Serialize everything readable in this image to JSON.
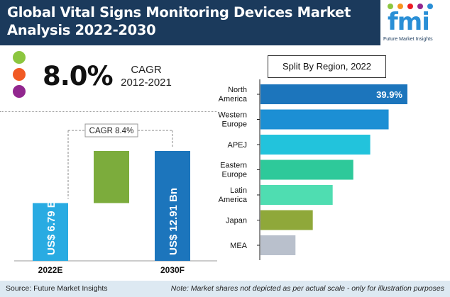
{
  "header": {
    "title_line1": "Global Vital Signs Monitoring Devices Market",
    "title_line2": "Analysis 2022-2030",
    "logo_text": "fmi",
    "logo_tagline": "Future Market Insights"
  },
  "cagr": {
    "value": "8.0%",
    "label_line1": "CAGR",
    "label_line2": "2012-2021",
    "dot_colors": [
      "#8cc63f",
      "#f15a24",
      "#92278f"
    ]
  },
  "footer": {
    "source": "Source: Future Market Insights",
    "note": "Note: Market shares not depicted as per actual scale - only for illustration purposes"
  },
  "chart_data": [
    {
      "type": "bar",
      "categories": [
        "2022E",
        "2030F"
      ],
      "values": [
        6.79,
        12.91
      ],
      "value_labels": [
        "US$ 6.79 Bn",
        "US$ 12.91 Bn"
      ],
      "growth": 6.12,
      "annotation": "CAGR 8.4%",
      "colors": {
        "2022E": "#29abe2",
        "2030F": "#1c75bc",
        "growth": "#7cac3c"
      }
    },
    {
      "type": "bar",
      "orientation": "horizontal",
      "title": "Split By Region, 2022",
      "categories": [
        [
          "North",
          "America"
        ],
        [
          "Western",
          "Europe"
        ],
        [
          "APEJ"
        ],
        [
          "Eastern",
          "Europe"
        ],
        [
          "Latin",
          "America"
        ],
        [
          "Japan"
        ],
        [
          "MEA"
        ]
      ],
      "values": [
        39.9,
        34.8,
        29.8,
        25.2,
        19.6,
        14.2,
        9.5
      ],
      "data_labels": [
        "39.9%",
        "",
        "",
        "",
        "",
        "",
        ""
      ],
      "colors": [
        "#1c75bc",
        "#1c8fd4",
        "#22c3dc",
        "#2ec99a",
        "#4fddb1",
        "#8fa83a",
        "#b9c0cc"
      ]
    }
  ]
}
